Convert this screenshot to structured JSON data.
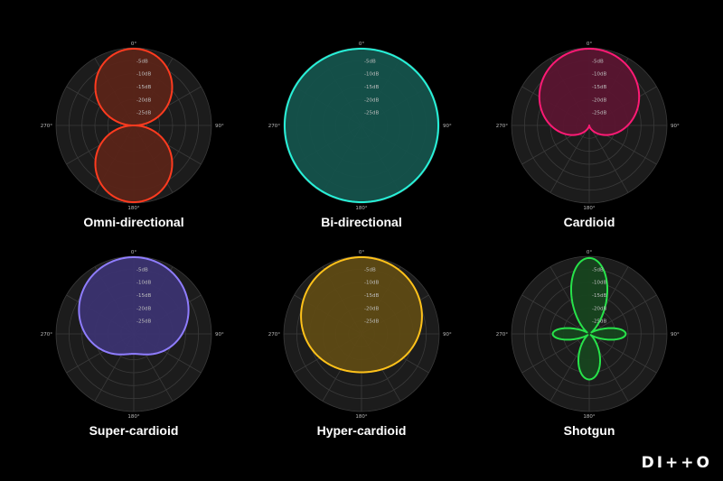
{
  "diagram": {
    "grid": {
      "ring_labels": [
        "-5dB",
        "-10dB",
        "-15dB",
        "-20dB",
        "-25dB"
      ],
      "angle_labels": {
        "top": "0°",
        "right": "90°",
        "bottom": "180°",
        "left": "270°"
      },
      "background_color": "#1c1c1c",
      "grid_color": "#3a3a3a"
    },
    "patterns": [
      {
        "title": "Omni-directional",
        "color": "#ff3b1f",
        "fill": "#5a2418",
        "alpha": 0
      },
      {
        "title": "Bi-directional",
        "color": "#26f2d9",
        "fill": "#14524b",
        "alpha": 1.0
      },
      {
        "title": "Cardioid",
        "color": "#ff1a75",
        "fill": "#5a1530",
        "alpha": 0.5
      },
      {
        "title": "Super-cardioid",
        "color": "#8f7dff",
        "fill": "#3b3370",
        "alpha": 0.63
      },
      {
        "title": "Hyper-cardioid",
        "color": "#ffc21a",
        "fill": "#5e4a14",
        "alpha": 0.75
      },
      {
        "title": "Shotgun",
        "color": "#27e34a",
        "fill": "#17441f",
        "alpha": "lobar"
      }
    ]
  },
  "logo": "DI++O"
}
